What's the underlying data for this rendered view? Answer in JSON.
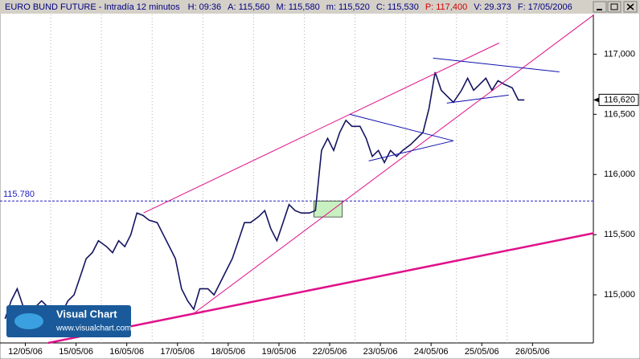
{
  "window": {
    "title": "EURO BUND FUTURE - Intradía 12 minutos",
    "fields": [
      {
        "label": "H:",
        "value": "09:36",
        "color": "#000080"
      },
      {
        "label": "A:",
        "value": "115,560",
        "color": "#000080"
      },
      {
        "label": "M:",
        "value": "115,580",
        "color": "#000080"
      },
      {
        "label": "m:",
        "value": "115,520",
        "color": "#000080"
      },
      {
        "label": "C:",
        "value": "115,530",
        "color": "#000080"
      },
      {
        "label": "P:",
        "value": "117,400",
        "color": "#d00000"
      },
      {
        "label": "V:",
        "value": "29.373",
        "color": "#000080"
      },
      {
        "label": "F:",
        "value": "17/05/2006",
        "color": "#000080"
      }
    ]
  },
  "logo": {
    "name": "Visual Chart",
    "url": "www.visualchart.com"
  },
  "chart_data": {
    "type": "line",
    "categories": [
      "12/05/06",
      "15/05/06",
      "16/05/06",
      "17/05/06",
      "18/05/06",
      "19/05/06",
      "22/05/06",
      "23/05/06",
      "24/05/06",
      "25/05/06",
      "26/05/06"
    ],
    "xlim": [
      0,
      11.7
    ],
    "ylim": [
      114.6,
      117.33
    ],
    "yticks": [
      {
        "value": 115,
        "label": "115,000"
      },
      {
        "value": 115.5,
        "label": "115,500"
      },
      {
        "value": 116,
        "label": "116,000"
      },
      {
        "value": 116.5,
        "label": "116,500"
      },
      {
        "value": 117,
        "label": "117,000"
      }
    ],
    "series": [
      {
        "name": "EURO BUND FUTURE",
        "color": "#141460",
        "x": [
          0.1,
          0.22,
          0.34,
          0.46,
          0.58,
          0.7,
          0.82,
          0.94,
          1.1,
          1.22,
          1.34,
          1.46,
          1.58,
          1.7,
          1.82,
          1.94,
          2.1,
          2.22,
          2.34,
          2.46,
          2.58,
          2.7,
          2.82,
          2.94,
          3.1,
          3.22,
          3.34,
          3.46,
          3.58,
          3.7,
          3.82,
          3.94,
          4.1,
          4.22,
          4.34,
          4.46,
          4.58,
          4.7,
          4.82,
          4.94,
          5.1,
          5.22,
          5.34,
          5.46,
          5.58,
          5.7,
          5.82,
          5.94,
          6.1,
          6.22,
          6.34,
          6.46,
          6.58,
          6.7,
          6.82,
          6.94,
          7.1,
          7.22,
          7.34,
          7.46,
          7.58,
          7.7,
          7.82,
          7.94,
          8.1,
          8.22,
          8.34,
          8.46,
          8.58,
          8.7,
          8.82,
          8.94,
          9.1,
          9.22,
          9.34,
          9.46,
          9.58,
          9.7,
          9.82,
          9.94,
          10.1,
          10.22,
          10.34
        ],
        "values": [
          114.8,
          114.95,
          115.05,
          114.9,
          114.85,
          114.9,
          114.95,
          114.9,
          114.9,
          114.85,
          114.95,
          115.0,
          115.15,
          115.3,
          115.35,
          115.45,
          115.4,
          115.35,
          115.45,
          115.4,
          115.5,
          115.68,
          115.66,
          115.62,
          115.6,
          115.5,
          115.4,
          115.3,
          115.05,
          114.95,
          114.88,
          115.05,
          115.05,
          115.0,
          115.1,
          115.2,
          115.3,
          115.45,
          115.6,
          115.6,
          115.65,
          115.7,
          115.55,
          115.45,
          115.6,
          115.75,
          115.7,
          115.68,
          115.68,
          115.7,
          116.2,
          116.3,
          116.2,
          116.35,
          116.45,
          116.4,
          116.4,
          116.3,
          116.15,
          116.2,
          116.1,
          116.2,
          116.15,
          116.2,
          116.25,
          116.3,
          116.35,
          116.55,
          116.85,
          116.7,
          116.65,
          116.6,
          116.7,
          116.8,
          116.7,
          116.75,
          116.8,
          116.7,
          116.78,
          116.75,
          116.72,
          116.62,
          116.62
        ]
      }
    ],
    "trendlines": [
      {
        "color": "#e0108a",
        "width": 1,
        "x": [
          2.83,
          9.84
        ],
        "y": [
          115.68,
          117.093
        ]
      },
      {
        "color": "#e0108a",
        "width": 1,
        "x": [
          3.78,
          11.71
        ],
        "y": [
          114.833,
          117.327
        ]
      },
      {
        "color": "#e0108a",
        "width": 2.5,
        "x": [
          0.95,
          11.71
        ],
        "y": [
          114.6,
          115.513
        ]
      },
      {
        "color": "#1010b0",
        "width": 1,
        "x": [
          6.9,
          8.94
        ],
        "y": [
          116.5,
          116.28
        ]
      },
      {
        "color": "#1010b0",
        "width": 1,
        "x": [
          7.27,
          8.94
        ],
        "y": [
          116.113,
          116.28
        ]
      },
      {
        "color": "#1010b0",
        "width": 1,
        "x": [
          8.54,
          11.03
        ],
        "y": [
          116.967,
          116.853
        ]
      },
      {
        "color": "#1010b0",
        "width": 1,
        "x": [
          8.81,
          10.03
        ],
        "y": [
          116.593,
          116.66
        ]
      }
    ],
    "box": {
      "color": "#c8f0c0",
      "x": [
        6.19,
        6.75
      ],
      "y": [
        115.78,
        115.647
      ]
    },
    "reference_line": {
      "value": 115.78,
      "label": "115.780",
      "color": "#2020c0"
    },
    "last_price": {
      "value": 116.62,
      "label": "116,620"
    }
  }
}
